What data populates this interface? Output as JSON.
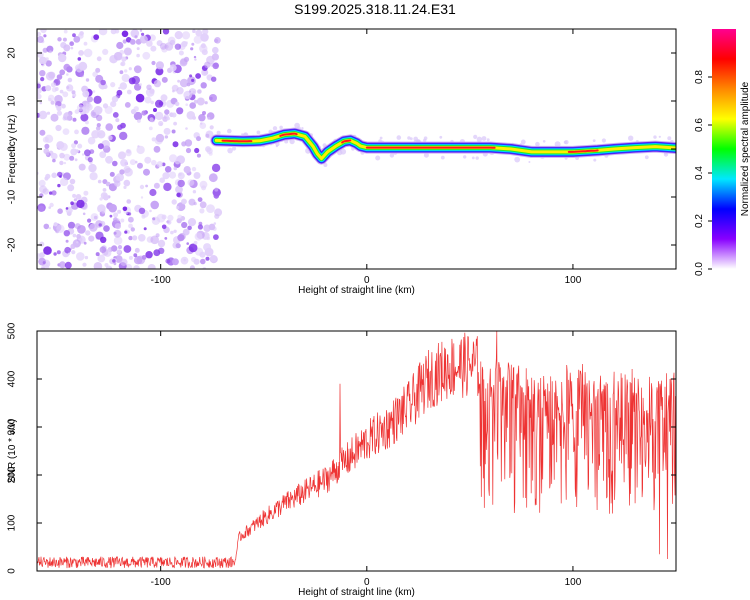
{
  "title": "S199.2025.318.11.24.E31",
  "chart_data": [
    {
      "type": "heatmap",
      "name": "spectrogram",
      "xlabel": "Height of straight line (km)",
      "ylabel": "Frequency (Hz)",
      "xlim": [
        -160,
        150
      ],
      "ylim": [
        -25,
        25
      ],
      "xticks": [
        -100,
        0,
        100
      ],
      "yticks": [
        -20,
        -10,
        0,
        10,
        20
      ],
      "noise_region_x": [
        -160,
        -73
      ],
      "ridge": {
        "x": [
          -73,
          -68,
          -60,
          -52,
          -46,
          -40,
          -35,
          -30,
          -26,
          -24,
          -22,
          -19,
          -15,
          -11,
          -8,
          -5,
          -3,
          0,
          20,
          40,
          60,
          70,
          80,
          90,
          100,
          112,
          120,
          130,
          140,
          150
        ],
        "freq": [
          1.8,
          1.7,
          1.6,
          1.7,
          2.2,
          3.0,
          3.2,
          2.6,
          0.5,
          -1.0,
          -2.0,
          -0.6,
          0.6,
          1.6,
          1.8,
          1.2,
          0.6,
          0.3,
          0.3,
          0.3,
          0.3,
          0.0,
          -0.6,
          -0.6,
          -0.6,
          -0.3,
          0.0,
          0.3,
          0.5,
          0.2
        ]
      },
      "colorbar": {
        "label": "Normalized spectral amplitude",
        "ticks": [
          0.0,
          0.2,
          0.4,
          0.6,
          0.8
        ],
        "tick_labels": [
          "0.0",
          "0.2",
          "0.4",
          "0.6",
          "0.8"
        ],
        "range": [
          0,
          1
        ],
        "stops": [
          "#ffffff",
          "#8800ff",
          "#0000ff",
          "#00e8ff",
          "#00ff00",
          "#ffff00",
          "#ff8800",
          "#ff0000",
          "#ff0090"
        ]
      }
    },
    {
      "type": "line",
      "name": "snr",
      "xlabel": "Height of straight line (km)",
      "ylabel": "SNR (10 * v/v)",
      "xlim": [
        -160,
        150
      ],
      "ylim": [
        0,
        500
      ],
      "xticks": [
        -100,
        0,
        100
      ],
      "yticks": [
        0,
        100,
        200,
        300,
        400,
        500
      ],
      "color": "#ee3333",
      "trend": {
        "x": [
          -160,
          -64,
          -62,
          -50,
          -40,
          -30,
          -20,
          -15,
          -10,
          0,
          10,
          20,
          30,
          40,
          50,
          60,
          80,
          100,
          120,
          140,
          150
        ],
        "y": [
          18,
          18,
          70,
          110,
          140,
          165,
          190,
          210,
          230,
          270,
          300,
          340,
          400,
          425,
          430,
          415,
          410,
          405,
          400,
          395,
          395
        ]
      },
      "spikes": [
        {
          "x": -13,
          "y": 390
        },
        {
          "x": 63,
          "y": 500
        },
        {
          "x": 142,
          "y": 35
        },
        {
          "x": 146,
          "y": 25
        }
      ]
    }
  ]
}
